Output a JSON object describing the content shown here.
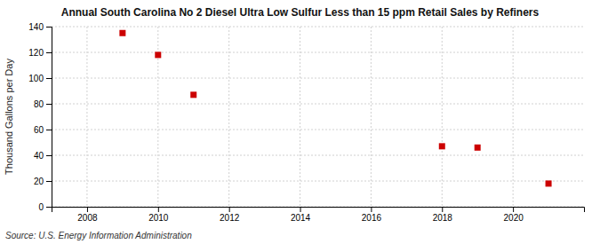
{
  "chart_data": {
    "type": "scatter",
    "title": "Annual South Carolina No 2 Diesel Ultra Low Sulfur Less than 15 ppm Retail Sales by Refiners",
    "ylabel": "Thousand Gallons per Day",
    "source": "Source: U.S. Energy Information Administration",
    "x": [
      2009,
      2010,
      2011,
      2018,
      2019,
      2021
    ],
    "values": [
      135,
      118,
      87,
      47,
      46,
      18
    ],
    "color": "#cc0000",
    "marker": "square",
    "xlim": [
      2007,
      2022
    ],
    "ylim": [
      0,
      140
    ],
    "xticks": [
      2008,
      2010,
      2012,
      2014,
      2016,
      2018,
      2020
    ],
    "yticks": [
      0,
      20,
      40,
      60,
      80,
      100,
      120,
      140
    ],
    "grid": true
  }
}
